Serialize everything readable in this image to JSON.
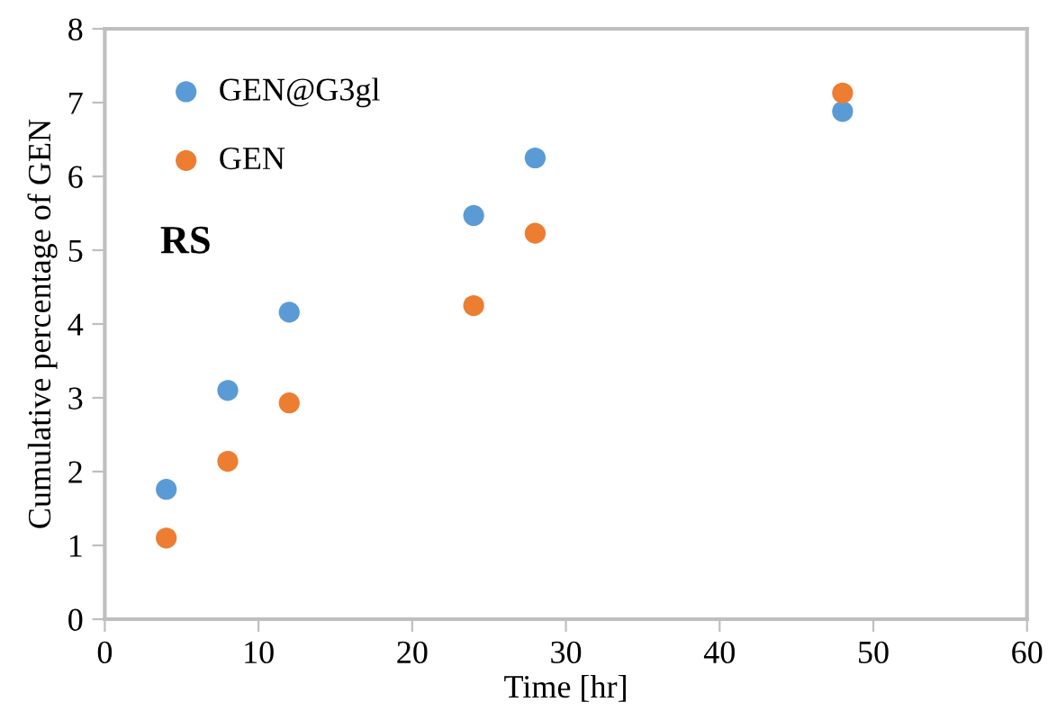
{
  "chart_data": {
    "type": "scatter",
    "xlabel": "Time [hr]",
    "ylabel": "Cumulative percentage of GEN",
    "x": [
      4,
      8,
      12,
      24,
      28,
      48
    ],
    "series": [
      {
        "name": "GEN@G3gl",
        "color": "#5b9bd5",
        "values": [
          1.76,
          3.1,
          4.16,
          5.47,
          6.25,
          6.88
        ]
      },
      {
        "name": "GEN",
        "color": "#ed7d31",
        "values": [
          1.1,
          2.14,
          2.93,
          4.25,
          5.23,
          7.13
        ]
      }
    ],
    "xlim": [
      0,
      60
    ],
    "xticks": [
      0,
      10,
      20,
      30,
      40,
      50,
      60
    ],
    "ylim": [
      0,
      8
    ],
    "yticks": [
      0,
      1,
      2,
      3,
      4,
      5,
      6,
      7,
      8
    ],
    "annotations": [
      "RS"
    ],
    "legend": "top left",
    "grid": false,
    "marker": "circle"
  }
}
